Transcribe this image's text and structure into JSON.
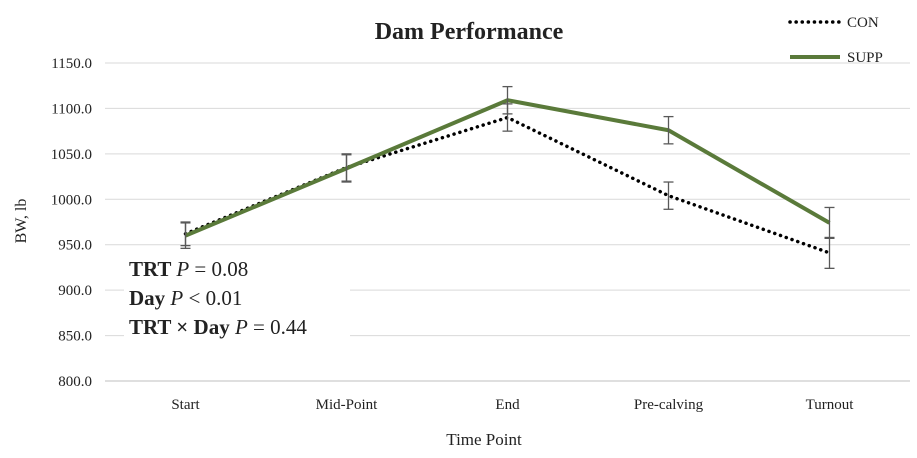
{
  "chart_data": {
    "type": "line",
    "title": "Dam Performance",
    "xlabel": "Time Point",
    "ylabel": "BW, lb",
    "categories": [
      "Start",
      "Mid-Point",
      "End",
      "Pre-calving",
      "Turnout"
    ],
    "ylim": [
      800,
      1150
    ],
    "yticks": [
      "800.0",
      "850.0",
      "900.0",
      "950.0",
      "1000.0",
      "1050.0",
      "1100.0",
      "1150.0"
    ],
    "grid": true,
    "legend_position": "top-right",
    "series": [
      {
        "name": "CON",
        "style": "dotted",
        "color": "#000000",
        "values": [
          962,
          1035,
          1090,
          1004,
          941
        ],
        "error": [
          13,
          15,
          15,
          15,
          17
        ]
      },
      {
        "name": "SUPP",
        "style": "solid",
        "color": "#5a7a3a",
        "values": [
          960,
          1034,
          1109,
          1076,
          974
        ],
        "error": [
          14,
          15,
          15,
          15,
          17
        ]
      }
    ],
    "annotations": [
      {
        "bold": "TRT",
        "italic": "P",
        "rest": " = 0.08"
      },
      {
        "bold": "Day",
        "italic": "P",
        "rest": " < 0.01"
      },
      {
        "bold": "TRT × Day",
        "italic": "P",
        "rest": " = 0.44"
      }
    ]
  }
}
